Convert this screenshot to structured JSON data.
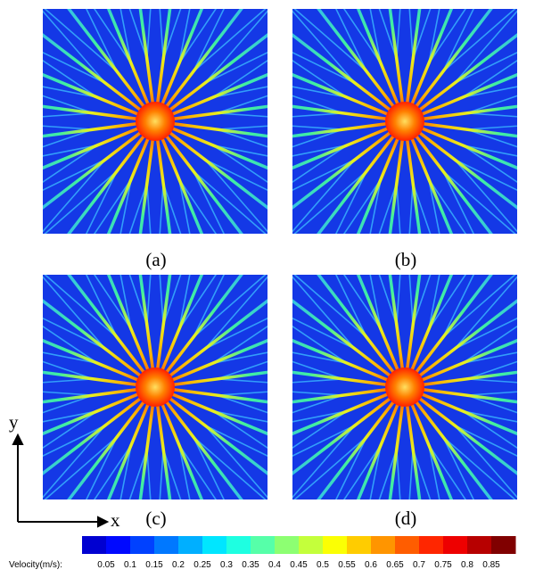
{
  "panels": [
    {
      "label": "(a)"
    },
    {
      "label": "(b)"
    },
    {
      "label": "(c)"
    },
    {
      "label": "(d)"
    }
  ],
  "axes": {
    "x": "x",
    "y": "y"
  },
  "colorbar": {
    "title": "Velocity(m/s):",
    "ticks": [
      "0.05",
      "0.1",
      "0.15",
      "0.2",
      "0.25",
      "0.3",
      "0.35",
      "0.4",
      "0.45",
      "0.5",
      "0.55",
      "0.6",
      "0.65",
      "0.7",
      "0.75",
      "0.8",
      "0.85"
    ]
  }
}
